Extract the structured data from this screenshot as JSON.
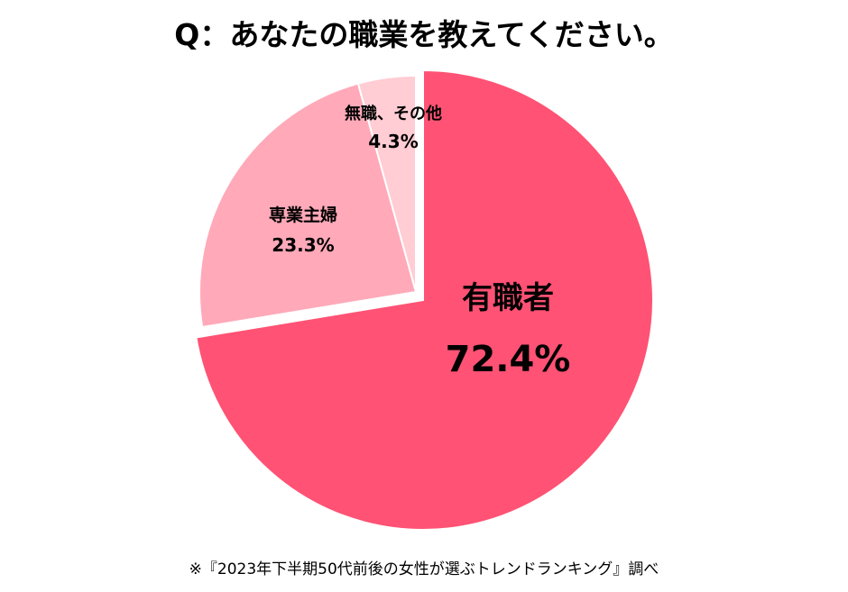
{
  "chart_data": {
    "type": "pie",
    "title": "Q：あなたの職業を教えてください。",
    "slices": [
      {
        "label": "有職者",
        "value": 72.4,
        "value_label": "72.4%",
        "color": "#FF5274"
      },
      {
        "label": "専業主婦",
        "value": 23.3,
        "value_label": "23.3%",
        "color": "#FFA9B9"
      },
      {
        "label": "無職、その他",
        "value": 4.3,
        "value_label": "4.3%",
        "color": "#FFCDD3"
      }
    ],
    "start_angle": "12 o'clock",
    "direction": "clockwise",
    "exploded": "有職者"
  },
  "footer": "※『2023年下半期50代前後の女性が選ぶトレンドランキング』調べ"
}
